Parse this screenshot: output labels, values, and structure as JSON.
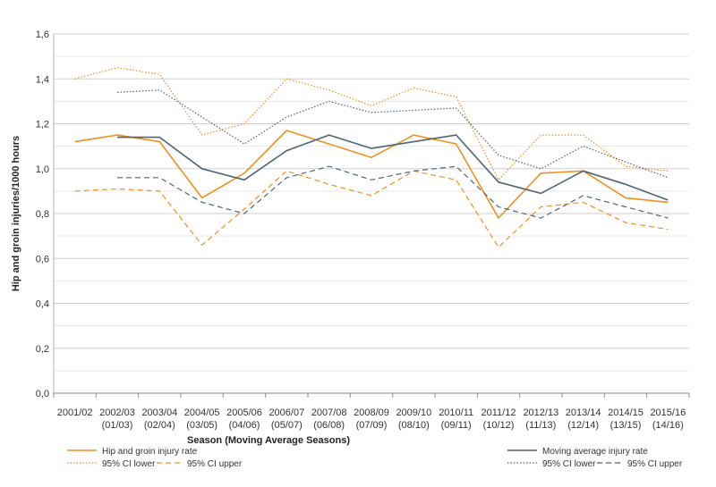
{
  "chart_data": {
    "type": "line",
    "xlabel": "Season (Moving Average Seasons)",
    "ylabel": "Hip and groin injuries/1000 hours",
    "ylim": [
      0,
      1.6
    ],
    "y_ticks": [
      "0,0",
      "0,2",
      "0,4",
      "0,6",
      "0,8",
      "1,0",
      "1,2",
      "1,4",
      "1,6"
    ],
    "grid": true,
    "categories": [
      {
        "line1": "2001/02",
        "line2": ""
      },
      {
        "line1": "2002/03",
        "line2": "(01/03)"
      },
      {
        "line1": "2003/04",
        "line2": "(02/04)"
      },
      {
        "line1": "2004/05",
        "line2": "(03/05)"
      },
      {
        "line1": "2005/06",
        "line2": "(04/06)"
      },
      {
        "line1": "2006/07",
        "line2": "(05/07)"
      },
      {
        "line1": "2007/08",
        "line2": "(06/08)"
      },
      {
        "line1": "2008/09",
        "line2": "(07/09)"
      },
      {
        "line1": "2009/10",
        "line2": "(08/10)"
      },
      {
        "line1": "2010/11",
        "line2": "(09/11)"
      },
      {
        "line1": "2011/12",
        "line2": "(10/12)"
      },
      {
        "line1": "2012/13",
        "line2": "(11/13)"
      },
      {
        "line1": "2013/14",
        "line2": "(12/14)"
      },
      {
        "line1": "2014/15",
        "line2": "(13/15)"
      },
      {
        "line1": "2015/16",
        "line2": "(14/16)"
      }
    ],
    "series": [
      {
        "name": "Hip and groin injury rate",
        "color": "#f0901e",
        "style": "solid",
        "values": [
          1.12,
          1.15,
          1.12,
          0.87,
          0.98,
          1.17,
          1.11,
          1.05,
          1.15,
          1.11,
          0.78,
          0.98,
          0.99,
          0.87,
          0.85
        ]
      },
      {
        "name": "95% CI lower",
        "color": "#f0901e",
        "style": "dotted",
        "values": [
          1.4,
          1.45,
          1.42,
          1.15,
          1.2,
          1.4,
          1.35,
          1.28,
          1.36,
          1.32,
          0.95,
          1.15,
          1.15,
          1.01,
          0.99
        ]
      },
      {
        "name": "95% CI upper",
        "color": "#f0901e",
        "style": "dashed",
        "values": [
          0.9,
          0.91,
          0.9,
          0.66,
          0.82,
          0.99,
          0.93,
          0.88,
          0.99,
          0.95,
          0.65,
          0.83,
          0.85,
          0.76,
          0.73
        ]
      },
      {
        "name": "Moving average injury rate",
        "color": "#4d6472",
        "style": "solid",
        "values": [
          null,
          1.14,
          1.14,
          1.0,
          0.95,
          1.08,
          1.15,
          1.09,
          1.12,
          1.15,
          0.94,
          0.89,
          0.99,
          0.93,
          0.86
        ]
      },
      {
        "name": "95% CI lower",
        "color": "#4d6472",
        "style": "dotted",
        "values": [
          null,
          1.34,
          1.35,
          1.23,
          1.11,
          1.23,
          1.3,
          1.25,
          1.26,
          1.27,
          1.06,
          1.0,
          1.1,
          1.03,
          0.96
        ]
      },
      {
        "name": "95% CI upper",
        "color": "#4d6472",
        "style": "dashed",
        "values": [
          null,
          0.96,
          0.96,
          0.85,
          0.8,
          0.96,
          1.01,
          0.95,
          0.99,
          1.01,
          0.83,
          0.78,
          0.88,
          0.83,
          0.78
        ]
      }
    ],
    "legend_position": "bottom"
  }
}
